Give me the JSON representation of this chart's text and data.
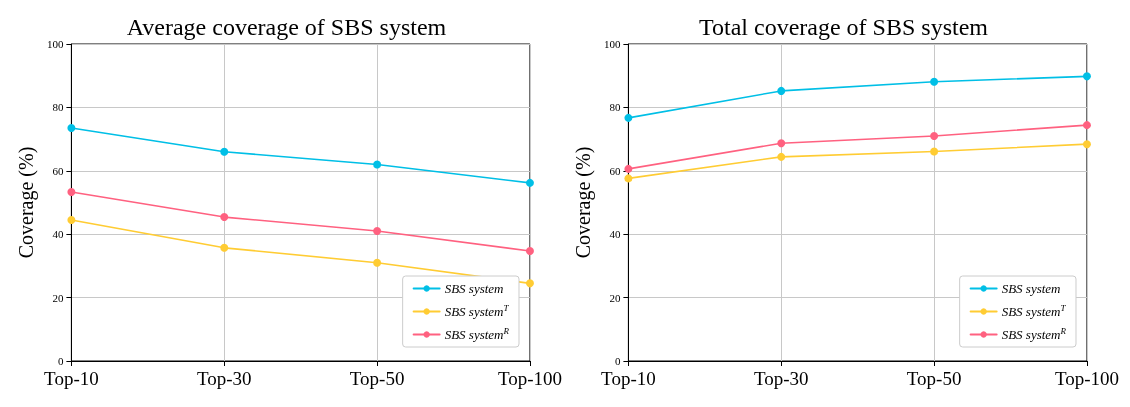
{
  "chart_data": [
    {
      "type": "line",
      "title": "Average coverage of SBS system",
      "ylabel": "Coverage (%)",
      "categories": [
        "Top-10",
        "Top-30",
        "Top-50",
        "Top-100"
      ],
      "series": [
        {
          "name": "SBS system",
          "color": "#00bfe6",
          "values": [
            73.5,
            66,
            62,
            56.2
          ]
        },
        {
          "name": "SBS system$^{T}$",
          "color": "#ffcc33",
          "values": [
            44.5,
            35.7,
            31,
            24.5
          ]
        },
        {
          "name": "SBS system$^{R}$",
          "color": "#ff6180",
          "values": [
            53.3,
            45.4,
            41,
            34.7
          ]
        }
      ],
      "ylim": [
        0,
        100
      ],
      "yticks": [
        0,
        20,
        40,
        60,
        80,
        100
      ],
      "grid": true,
      "legend": "bottom right",
      "marker": "circle",
      "line_style": "solid"
    },
    {
      "type": "line",
      "title": "Total coverage of SBS system",
      "ylabel": "Coverage (%)",
      "categories": [
        "Top-10",
        "Top-30",
        "Top-50",
        "Top-100"
      ],
      "series": [
        {
          "name": "SBS system",
          "color": "#00bfe6",
          "values": [
            76.7,
            85.2,
            88.1,
            89.8
          ]
        },
        {
          "name": "SBS system$^{T}$",
          "color": "#ffcc33",
          "values": [
            57.6,
            64.4,
            66.1,
            68.4
          ]
        },
        {
          "name": "SBS system$^{R}$",
          "color": "#ff6180",
          "values": [
            60.6,
            68.7,
            71,
            74.4
          ]
        }
      ],
      "ylim": [
        0,
        100
      ],
      "yticks": [
        0,
        20,
        40,
        60,
        80,
        100
      ],
      "grid": true,
      "legend": "bottom right",
      "marker": "circle",
      "line_style": "solid"
    }
  ]
}
